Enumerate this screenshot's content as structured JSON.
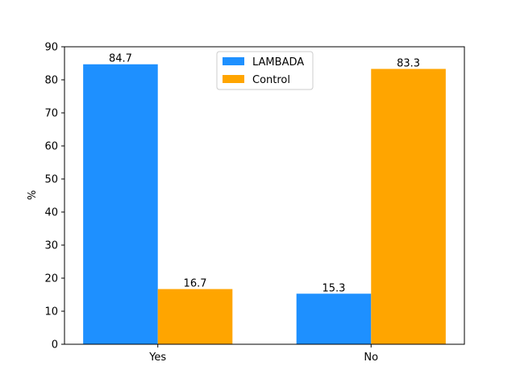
{
  "chart_data": {
    "type": "bar",
    "categories": [
      "Yes",
      "No"
    ],
    "series": [
      {
        "name": "LAMBADA",
        "values": [
          84.7,
          15.3
        ],
        "color": "#1e90ff"
      },
      {
        "name": "Control",
        "values": [
          16.7,
          83.3
        ],
        "color": "#ffa500"
      }
    ],
    "data_labels": [
      [
        "84.7",
        "15.3"
      ],
      [
        "16.7",
        "83.3"
      ]
    ],
    "title": "",
    "xlabel": "",
    "ylabel": "%",
    "ylim": [
      0,
      90
    ],
    "yticks": [
      0,
      10,
      20,
      30,
      40,
      50,
      60,
      70,
      80,
      90
    ],
    "grid": false,
    "legend_position": "top-center"
  }
}
